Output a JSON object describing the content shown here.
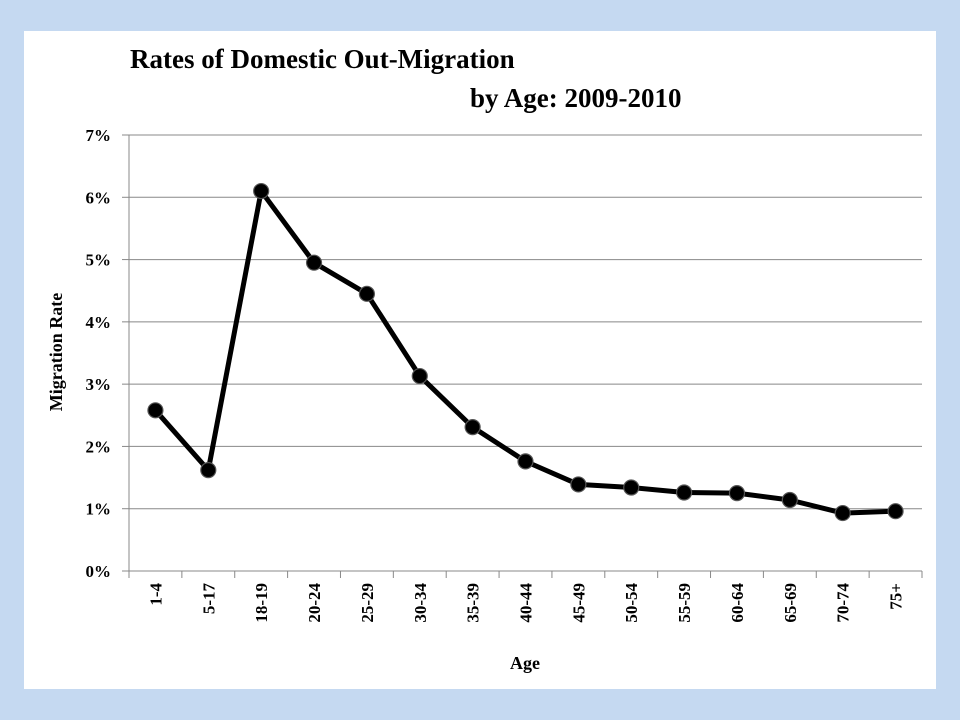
{
  "chart_data": {
    "type": "line",
    "title": "Rates of Domestic Out-Migration",
    "subtitle": "by Age: 2009-2010",
    "xlabel": "Age",
    "ylabel": "Migration Rate",
    "categories": [
      "1-4",
      "5-17",
      "18-19",
      "20-24",
      "25-29",
      "30-34",
      "35-39",
      "40-44",
      "45-49",
      "50-54",
      "55-59",
      "60-64",
      "65-69",
      "70-74",
      "75+"
    ],
    "series": [
      {
        "values": [
          2.58,
          1.62,
          6.1,
          4.95,
          4.45,
          3.13,
          2.31,
          1.76,
          1.39,
          1.34,
          1.26,
          1.25,
          1.14,
          0.93,
          0.96
        ]
      }
    ],
    "ylim": [
      0,
      7
    ],
    "yticks": [
      0,
      1,
      2,
      3,
      4,
      5,
      6,
      7
    ],
    "ytick_labels": [
      "0%",
      "1%",
      "2%",
      "3%",
      "4%",
      "5%",
      "6%",
      "7%"
    ],
    "grid": true,
    "legend": "none",
    "line_color": "#000000",
    "marker_color": "#000000"
  }
}
